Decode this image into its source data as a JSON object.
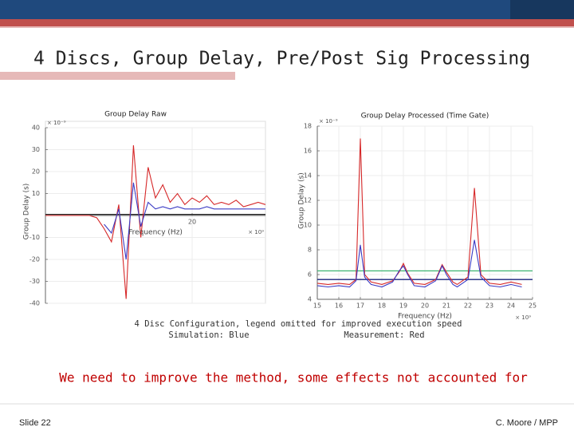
{
  "slide": {
    "title": "4 Discs, Group Delay, Pre/Post Sig Processing",
    "caption": "4 Disc Configuration, legend omitted for improved execution speed",
    "caption_sim": "Simulation: Blue",
    "caption_meas": "Measurement: Red",
    "remark": "We need to improve the method, some effects not accounted for",
    "footer_left": "Slide 22",
    "footer_right": "C. Moore / MPP"
  },
  "chart_data": [
    {
      "type": "line",
      "title": "Group Delay Raw",
      "x_label": "Frequency (Hz)",
      "y_label": "Group Delay (s)",
      "x_multiplier": "× 10⁹",
      "y_multiplier": "× 10⁻⁹",
      "xlim": [
        10,
        25
      ],
      "xticks": [
        20
      ],
      "ylim": [
        -40,
        40
      ],
      "yticks": [
        40,
        30,
        20,
        10,
        -10,
        -20,
        -30,
        -40
      ],
      "grid": true,
      "x": [
        10,
        10.5,
        11,
        11.5,
        12,
        12.5,
        13,
        13.5,
        14,
        14.5,
        15,
        15.5,
        16,
        16.5,
        17,
        17.5,
        18,
        18.5,
        19,
        19.5,
        20,
        20.5,
        21,
        21.5,
        22,
        22.5,
        23,
        23.5,
        24,
        24.5,
        25
      ],
      "series": [
        {
          "color": "#d62728",
          "values": [
            0,
            0,
            0,
            0,
            0,
            0,
            0,
            -1,
            -6,
            -12,
            5,
            -38,
            32,
            -10,
            22,
            8,
            14,
            6,
            10,
            5,
            8,
            6,
            9,
            5,
            6,
            5,
            7,
            4,
            5,
            6,
            5
          ]
        },
        {
          "color": "#3b3bc4",
          "values": [
            null,
            null,
            null,
            null,
            null,
            null,
            null,
            null,
            -4,
            -8,
            3,
            -20,
            15,
            -5,
            6,
            3,
            4,
            3,
            4,
            3,
            3,
            3,
            4,
            3,
            3,
            3,
            3,
            3,
            3,
            3,
            3
          ]
        }
      ],
      "hlines": [
        {
          "value": 0.5,
          "color": "#222222"
        }
      ]
    },
    {
      "type": "line",
      "title": "Group Delay Processed (Time Gate)",
      "x_label": "Frequency (Hz)",
      "y_label": "Group Delay (s)",
      "x_multiplier": "× 10⁹",
      "y_multiplier": "× 10⁻⁹",
      "xlim": [
        15,
        25
      ],
      "xticks": [
        15,
        16,
        17,
        18,
        19,
        20,
        21,
        22,
        23,
        24,
        25
      ],
      "ylim": [
        4,
        18
      ],
      "yticks": [
        4,
        6,
        8,
        10,
        12,
        14,
        16,
        18
      ],
      "grid": true,
      "x": [
        15,
        15.5,
        16,
        16.5,
        16.8,
        17,
        17.2,
        17.5,
        18,
        18.5,
        18.8,
        19,
        19.2,
        19.5,
        20,
        20.5,
        20.8,
        21,
        21.3,
        21.5,
        22,
        22.3,
        22.6,
        23,
        23.5,
        24,
        24.5
      ],
      "series": [
        {
          "color": "#d62728",
          "values": [
            5.3,
            5.2,
            5.3,
            5.2,
            5.6,
            17,
            6,
            5.4,
            5.2,
            5.5,
            6.2,
            6.9,
            6.1,
            5.3,
            5.2,
            5.6,
            6.8,
            6.2,
            5.4,
            5.2,
            5.8,
            13,
            6,
            5.3,
            5.2,
            5.4,
            5.2
          ]
        },
        {
          "color": "#3b3bc4",
          "values": [
            5.1,
            5.0,
            5.1,
            5.0,
            5.5,
            8.4,
            5.8,
            5.2,
            5.0,
            5.4,
            6.3,
            6.7,
            6.0,
            5.1,
            5.0,
            5.5,
            6.7,
            6.0,
            5.2,
            5.0,
            5.6,
            8.8,
            5.8,
            5.1,
            5.0,
            5.2,
            5.0
          ]
        }
      ],
      "hlines": [
        {
          "value": 6.3,
          "color": "#3cb371"
        },
        {
          "value": 5.6,
          "color": "#1a237e"
        }
      ]
    }
  ]
}
